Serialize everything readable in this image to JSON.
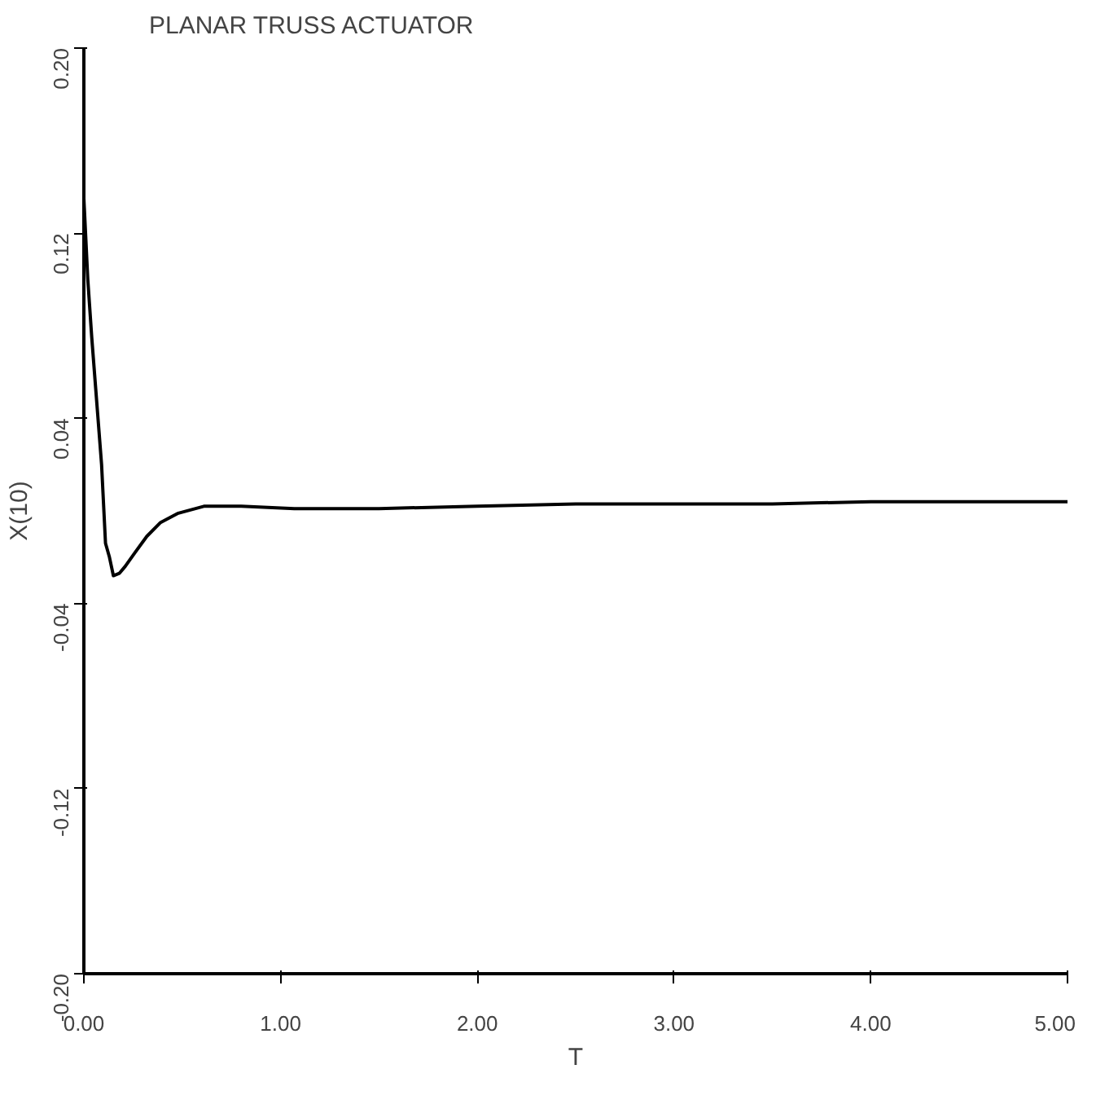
{
  "chart_data": {
    "type": "line",
    "title": "PLANAR TRUSS ACTUATOR",
    "xlabel": "T",
    "ylabel": "X(10)",
    "series": [
      {
        "color": "#000000",
        "x": [
          0,
          0.02,
          0.04,
          0.06,
          0.09,
          0.11,
          0.13,
          0.15,
          0.18,
          0.21,
          0.26,
          0.32,
          0.39,
          0.48,
          0.61,
          0.8,
          1.07,
          1.5,
          2.0,
          2.5,
          3.0,
          3.5,
          4.0,
          4.5,
          5.0
        ],
        "values": [
          0.135,
          0.1,
          0.075,
          0.053,
          0.02,
          -0.014,
          -0.02,
          -0.028,
          -0.027,
          -0.024,
          -0.018,
          -0.011,
          -0.005,
          -0.001,
          0.002,
          0.002,
          0.001,
          0.001,
          0.002,
          0.003,
          0.003,
          0.003,
          0.004,
          0.004,
          0.004
        ]
      }
    ],
    "xlim": [
      0,
      5
    ],
    "ylim": [
      -0.2,
      0.2
    ],
    "xticks": [
      {
        "value": 0,
        "label": "0.00"
      },
      {
        "value": 1,
        "label": "1.00"
      },
      {
        "value": 2,
        "label": "2.00"
      },
      {
        "value": 3,
        "label": "3.00"
      },
      {
        "value": 4,
        "label": "4.00"
      },
      {
        "value": 5,
        "label": "5.00"
      }
    ],
    "yticks": [
      {
        "value": -0.2,
        "label": "-0.20"
      },
      {
        "value": -0.12,
        "label": "-0.12"
      },
      {
        "value": -0.04,
        "label": "-0.04"
      },
      {
        "value": 0.04,
        "label": "0.04"
      },
      {
        "value": 0.12,
        "label": "0.12"
      },
      {
        "value": 0.2,
        "label": "0.20"
      }
    ],
    "grid": false,
    "marker": "none",
    "line_style": "solid"
  }
}
